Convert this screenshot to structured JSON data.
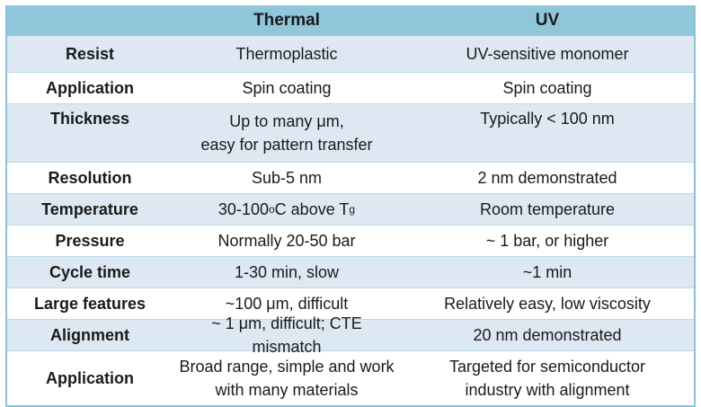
{
  "header": {
    "col0": "",
    "col1": "Thermal",
    "col2": "UV"
  },
  "rows": [
    {
      "label": "Resist",
      "thermal": [
        "Thermoplastic"
      ],
      "uv": [
        "UV-sensitive monomer"
      ]
    },
    {
      "label": "Application",
      "thermal": [
        "Spin coating"
      ],
      "uv": [
        "Spin coating"
      ]
    },
    {
      "label": "Thickness",
      "thermal": [
        "Up to many μm,",
        "easy for pattern transfer"
      ],
      "uv": [
        "Typically < 100 nm"
      ]
    },
    {
      "label": "Resolution",
      "thermal": [
        "Sub-5 nm"
      ],
      "uv": [
        "2 nm demonstrated"
      ]
    },
    {
      "label": "Temperature",
      "thermal_prefix": "30-100",
      "thermal_sup": "o",
      "thermal_mid": "C above T",
      "thermal_sub": "g",
      "uv": [
        "Room temperature"
      ]
    },
    {
      "label": "Pressure",
      "thermal": [
        "Normally 20-50 bar"
      ],
      "uv": [
        "~ 1 bar, or higher"
      ]
    },
    {
      "label": "Cycle time",
      "thermal": [
        "1-30 min, slow"
      ],
      "uv": [
        "~1 min"
      ]
    },
    {
      "label": "Large features",
      "thermal": [
        "~100 μm, difficult"
      ],
      "uv": [
        "Relatively easy, low viscosity"
      ]
    },
    {
      "label": "Alignment",
      "thermal": [
        "~ 1 μm, difficult; CTE mismatch"
      ],
      "uv": [
        "20 nm demonstrated"
      ]
    },
    {
      "label": "Application",
      "thermal": [
        "Broad range, simple and work",
        "with many materials"
      ],
      "uv": [
        "Targeted for semiconductor",
        "industry with alignment"
      ]
    }
  ]
}
